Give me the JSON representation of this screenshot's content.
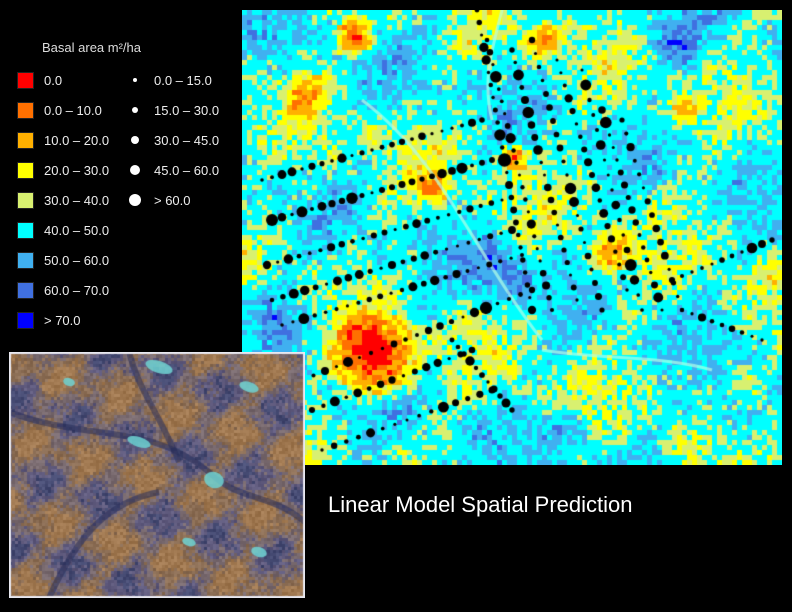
{
  "legend": {
    "title": "Basal area m²/ha",
    "color_classes": [
      {
        "label": "0.0",
        "color": "#ff0000"
      },
      {
        "label": "0.0 – 10.0",
        "color": "#ff7000"
      },
      {
        "label": "10.0 – 20.0",
        "color": "#ffb000"
      },
      {
        "label": "20.0 – 30.0",
        "color": "#ffff00"
      },
      {
        "label": "30.0 – 40.0",
        "color": "#d8f070"
      },
      {
        "label": "40.0 – 50.0",
        "color": "#00ffff"
      },
      {
        "label": "50.0 – 60.0",
        "color": "#40b0f0"
      },
      {
        "label": "60.0 – 70.0",
        "color": "#4070e0"
      },
      {
        "label": "> 70.0",
        "color": "#0000ff"
      }
    ],
    "dot_classes": [
      {
        "label": "0.0 – 15.0",
        "size_class": 1
      },
      {
        "label": "15.0 – 30.0",
        "size_class": 2
      },
      {
        "label": "30.0 – 45.0",
        "size_class": 3
      },
      {
        "label": "45.0 – 60.0",
        "size_class": 4
      },
      {
        "label": "> 60.0",
        "size_class": 5
      }
    ]
  },
  "caption": "Linear Model Spatial Prediction"
}
